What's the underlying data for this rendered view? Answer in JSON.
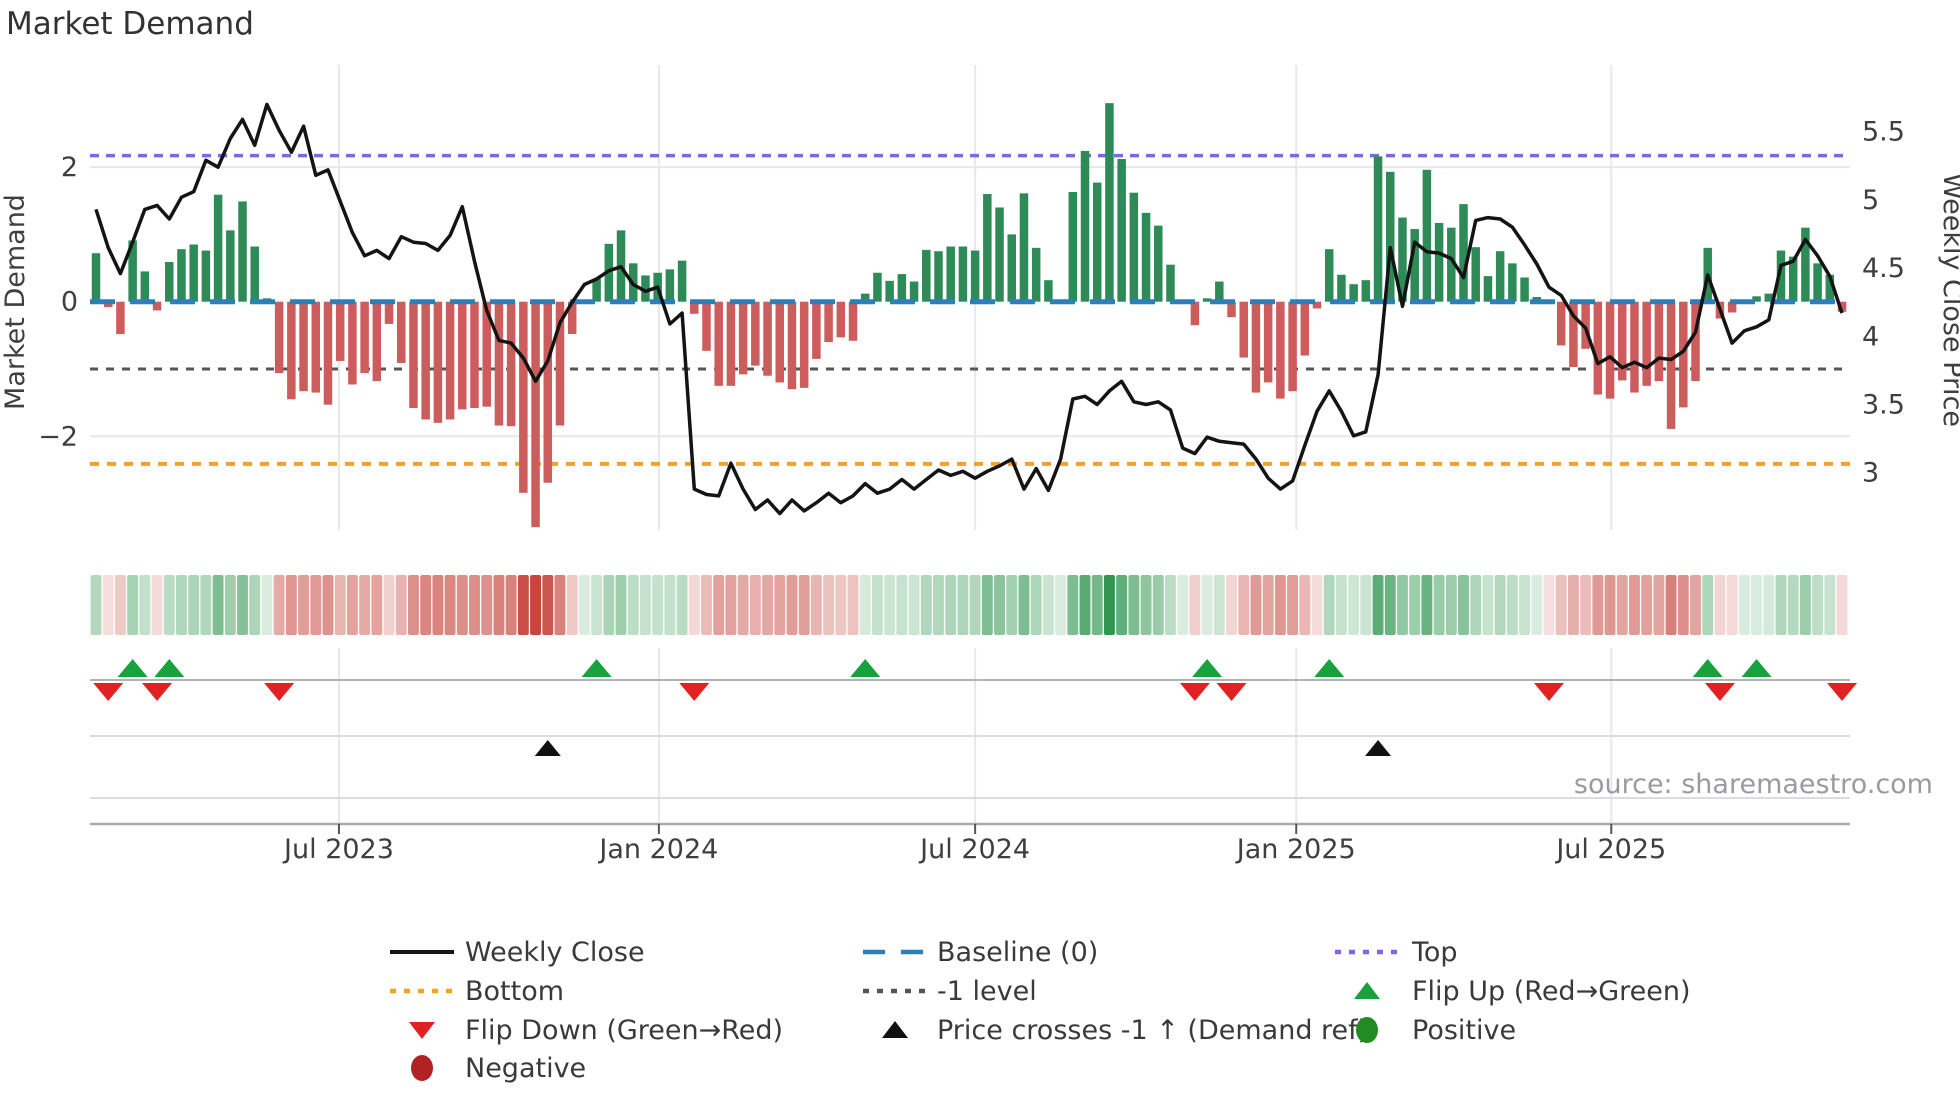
{
  "title": "Market Demand",
  "source": "source: sharemaestro.com",
  "colors": {
    "bar_positive": "#2E8B57",
    "bar_negative": "#CD5C5C",
    "price_line": "#141414",
    "baseline": "#2e7ebc",
    "top_line": "#7B68EE",
    "bottom_line": "#F5A028",
    "minus_one_line": "#555555",
    "flip_up_marker": "#18a23e",
    "flip_down_marker": "#e02222",
    "price_cross_marker": "#111111",
    "positive_dot": "#228B22",
    "negative_dot": "#B22222",
    "grid": "#e7e7ec"
  },
  "chart_data": {
    "type": "bar+line+heatmap",
    "frequency": "weekly",
    "n_weeks": 144,
    "x_ticks": [
      {
        "label": "Jul 2023",
        "week": 19.9
      },
      {
        "label": "Jan 2024",
        "week": 46.1
      },
      {
        "label": "Jul 2024",
        "week": 72.0
      },
      {
        "label": "Jan 2025",
        "week": 98.3
      },
      {
        "label": "Jul 2025",
        "week": 124.1
      }
    ],
    "left_axis": {
      "label": "Market Demand",
      "ticks": [
        2,
        0,
        -2
      ],
      "tick_labels": [
        "2",
        "0",
        "−2"
      ],
      "ylim": [
        -3.5,
        3.5
      ]
    },
    "right_axis": {
      "label": "Weekly Close Price",
      "ticks": [
        5.5,
        5,
        4.5,
        4,
        3.5,
        3
      ],
      "tick_labels": [
        "5.5",
        "5",
        "4.5",
        "4",
        "3.5",
        "3"
      ],
      "ylim": [
        2.6,
        5.75
      ]
    },
    "reference_lines": {
      "baseline": 0,
      "minus_one": -1,
      "top": 2.17,
      "bottom": -2.41
    },
    "series": [
      {
        "name": "Market Demand",
        "type": "bar",
        "axis": "left",
        "values": [
          0.72,
          -0.08,
          -0.48,
          0.91,
          0.45,
          -0.13,
          0.59,
          0.78,
          0.85,
          0.76,
          1.59,
          1.06,
          1.49,
          0.82,
          0.05,
          -1.06,
          -1.45,
          -1.33,
          -1.35,
          -1.53,
          -0.88,
          -1.23,
          -1.06,
          -1.18,
          -0.33,
          -0.91,
          -1.58,
          -1.75,
          -1.8,
          -1.75,
          -1.6,
          -1.58,
          -1.56,
          -1.84,
          -1.85,
          -2.84,
          -3.35,
          -2.69,
          -1.84,
          -0.48,
          0,
          0.34,
          0.86,
          1.06,
          0.57,
          0.39,
          0.43,
          0.48,
          0.61,
          -0.18,
          -0.73,
          -1.25,
          -1.25,
          -1.08,
          -0.95,
          -1.1,
          -1.2,
          -1.3,
          -1.28,
          -0.85,
          -0.6,
          -0.53,
          -0.58,
          0.12,
          0.43,
          0.31,
          0.41,
          0.3,
          0.77,
          0.75,
          0.82,
          0.82,
          0.76,
          1.6,
          1.4,
          1.0,
          1.61,
          0.8,
          0.32,
          0,
          1.63,
          2.24,
          1.77,
          2.95,
          2.12,
          1.62,
          1.32,
          1.13,
          0.55,
          0,
          -0.35,
          0.05,
          0.3,
          -0.23,
          -0.83,
          -1.35,
          -1.2,
          -1.44,
          -1.33,
          -0.8,
          -0.1,
          0.78,
          0.4,
          0.26,
          0.32,
          2.16,
          1.93,
          1.25,
          1.08,
          1.96,
          1.17,
          1.1,
          1.45,
          0.81,
          0.38,
          0.75,
          0.57,
          0.36,
          0.07,
          -0.02,
          -0.65,
          -0.97,
          -0.7,
          -1.38,
          -1.44,
          -1.17,
          -1.35,
          -1.25,
          -1.18,
          -1.89,
          -1.57,
          -1.18,
          0.8,
          -0.25,
          -0.16,
          0,
          0.08,
          0.12,
          0.76,
          0.67,
          1.1,
          0.57,
          0.4,
          -0.15
        ]
      },
      {
        "name": "Weekly Close",
        "type": "line",
        "axis": "right",
        "values": [
          4.93,
          4.65,
          4.46,
          4.69,
          4.93,
          4.96,
          4.86,
          5.02,
          5.06,
          5.29,
          5.24,
          5.45,
          5.59,
          5.4,
          5.7,
          5.51,
          5.35,
          5.54,
          5.18,
          5.22,
          4.99,
          4.76,
          4.59,
          4.63,
          4.57,
          4.73,
          4.69,
          4.68,
          4.63,
          4.74,
          4.95,
          4.55,
          4.19,
          3.97,
          3.95,
          3.84,
          3.67,
          3.82,
          4.1,
          4.25,
          4.38,
          4.42,
          4.48,
          4.51,
          4.38,
          4.33,
          4.36,
          4.09,
          4.17,
          2.88,
          2.84,
          2.83,
          3.07,
          2.88,
          2.73,
          2.8,
          2.7,
          2.8,
          2.72,
          2.78,
          2.85,
          2.78,
          2.83,
          2.92,
          2.85,
          2.88,
          2.95,
          2.88,
          2.95,
          3.02,
          2.98,
          3.01,
          2.96,
          3.01,
          3.05,
          3.1,
          2.88,
          3.03,
          2.87,
          3.1,
          3.54,
          3.56,
          3.5,
          3.6,
          3.67,
          3.52,
          3.5,
          3.52,
          3.46,
          3.18,
          3.14,
          3.26,
          3.23,
          3.22,
          3.21,
          3.1,
          2.96,
          2.88,
          2.94,
          3.2,
          3.45,
          3.6,
          3.45,
          3.27,
          3.3,
          3.72,
          4.65,
          4.22,
          4.69,
          4.62,
          4.61,
          4.57,
          4.43,
          4.85,
          4.87,
          4.86,
          4.8,
          4.67,
          4.53,
          4.36,
          4.3,
          4.15,
          4.06,
          3.8,
          3.85,
          3.77,
          3.81,
          3.77,
          3.84,
          3.83,
          3.89,
          4.03,
          4.45,
          4.2,
          3.95,
          4.04,
          4.07,
          4.12,
          4.52,
          4.55,
          4.71,
          4.59,
          4.44,
          4.17
        ]
      }
    ],
    "heatmap": {
      "description": "weekly demand intensity strip, red-to-green shading of the bar values",
      "values_from_series": "Market Demand"
    },
    "markers": {
      "flip_up_weeks": [
        3,
        6,
        41,
        63,
        91,
        101,
        132,
        136
      ],
      "flip_down_weeks": [
        1,
        5,
        15,
        49,
        90,
        93,
        119,
        133,
        143
      ],
      "price_cross_weeks": [
        37,
        105
      ]
    }
  },
  "legend": {
    "items": [
      {
        "swatch": "line",
        "color": "#141414",
        "label": "Weekly Close",
        "col": 0,
        "row": 0
      },
      {
        "swatch": "dash",
        "color": "#2e7ebc",
        "label": "Baseline (0)",
        "col": 1,
        "row": 0
      },
      {
        "swatch": "dot",
        "color": "#7B68EE",
        "label": "Top",
        "col": 2,
        "row": 0
      },
      {
        "swatch": "dot",
        "color": "#F5A028",
        "label": "Bottom",
        "col": 0,
        "row": 1
      },
      {
        "swatch": "dot",
        "color": "#555555",
        "label": "-1 level",
        "col": 1,
        "row": 1
      },
      {
        "swatch": "tri-up",
        "color": "#18a23e",
        "label": "Flip Up (Red→Green)",
        "col": 2,
        "row": 1
      },
      {
        "swatch": "tri-down",
        "color": "#e02222",
        "label": "Flip Down (Green→Red)",
        "col": 0,
        "row": 2
      },
      {
        "swatch": "tri-up",
        "color": "#111111",
        "label": "Price crosses -1 ↑ (Demand ref)",
        "col": 1,
        "row": 2
      },
      {
        "swatch": "circle",
        "color": "#228B22",
        "label": "Positive",
        "col": 2,
        "row": 2
      },
      {
        "swatch": "circle",
        "color": "#B22222",
        "label": "Negative",
        "col": 0,
        "row": 3
      }
    ]
  }
}
